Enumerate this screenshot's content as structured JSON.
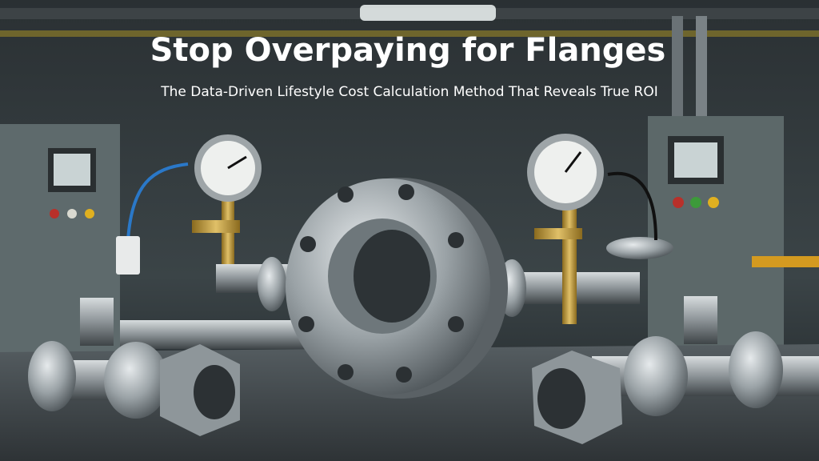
{
  "header": {
    "title": "Stop Overpaying for Flanges",
    "subtitle": "The Data-Driven Lifestyle Cost Calculation Method That Reveals True ROI"
  }
}
